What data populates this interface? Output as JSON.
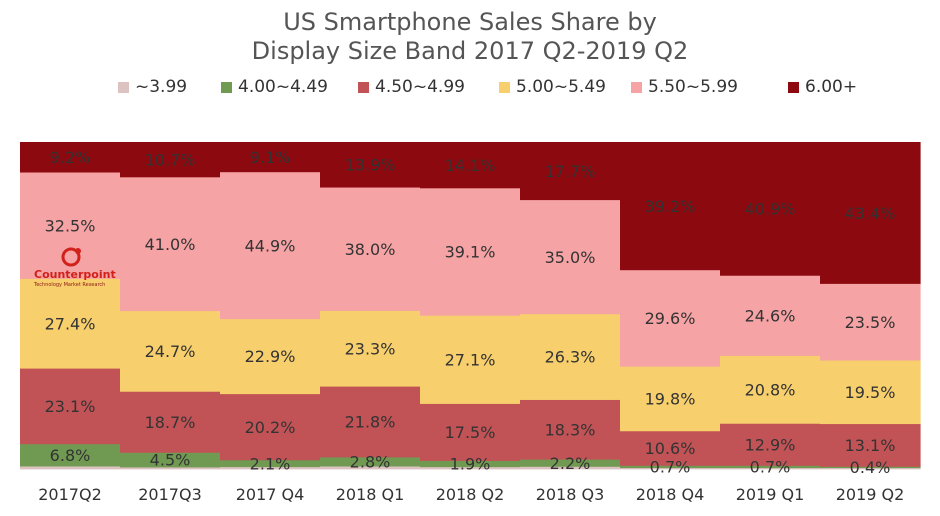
{
  "chart_data": {
    "type": "bar",
    "stacked": true,
    "normalized": true,
    "title": [
      "US Smartphone Sales Share by",
      "Display Size Band 2017 Q2-2019 Q2"
    ],
    "categories": [
      "2017Q2",
      "2017Q3",
      "2017 Q4",
      "2018 Q1",
      "2018 Q2",
      "2018 Q3",
      "2018 Q4",
      "2019 Q1",
      "2019 Q2"
    ],
    "series": [
      {
        "name": "~3.99",
        "color": "#dcc2c0",
        "values": [
          0.9,
          0.6,
          0.7,
          0.9,
          0.7,
          0.8,
          0.4,
          0.4,
          0.4
        ],
        "labels": [
          "",
          "",
          "",
          "",
          "",
          "",
          "",
          "",
          ""
        ]
      },
      {
        "name": "4.00~4.49",
        "color": "#709952",
        "values": [
          6.8,
          4.5,
          2.1,
          2.8,
          1.9,
          2.2,
          0.7,
          0.7,
          0.4
        ],
        "labels": [
          "6.8%",
          "4.5%",
          "2.1%",
          "2.8%",
          "1.9%",
          "2.2%",
          "0.7%",
          "0.7%",
          "0.4%"
        ]
      },
      {
        "name": "4.50~4.99",
        "color": "#c15356",
        "values": [
          23.1,
          18.7,
          20.2,
          21.8,
          17.5,
          18.3,
          10.6,
          12.9,
          13.1
        ],
        "labels": [
          "23.1%",
          "18.7%",
          "20.2%",
          "21.8%",
          "17.5%",
          "18.3%",
          "10.6%",
          "12.9%",
          "13.1%"
        ]
      },
      {
        "name": "5.00~5.49",
        "color": "#f7cf6c",
        "values": [
          27.4,
          24.7,
          22.9,
          23.3,
          27.1,
          26.3,
          19.8,
          20.8,
          19.5
        ],
        "labels": [
          "27.4%",
          "24.7%",
          "22.9%",
          "23.3%",
          "27.1%",
          "26.3%",
          "19.8%",
          "20.8%",
          "19.5%"
        ]
      },
      {
        "name": "5.50~5.99",
        "color": "#f5a3a4",
        "values": [
          32.5,
          41.0,
          44.9,
          38.0,
          39.1,
          35.0,
          29.6,
          24.6,
          23.5
        ],
        "labels": [
          "32.5%",
          "41.0%",
          "44.9%",
          "38.0%",
          "39.1%",
          "35.0%",
          "29.6%",
          "24.6%",
          "23.5%"
        ]
      },
      {
        "name": "6.00+",
        "color": "#8c0a0f",
        "values": [
          9.2,
          10.7,
          9.1,
          13.9,
          14.1,
          17.7,
          39.2,
          40.9,
          43.4
        ],
        "labels": [
          "9.2%",
          "10.7%",
          "9.1%",
          "13.9%",
          "14.1%",
          "17.7%",
          "39.2%",
          "40.9%",
          "43.4%"
        ]
      }
    ],
    "ylim": [
      0,
      100
    ],
    "legend_position": "top",
    "grid": false
  },
  "logo": {
    "name": "Counterpoint",
    "tagline": "Technology Market Research"
  }
}
